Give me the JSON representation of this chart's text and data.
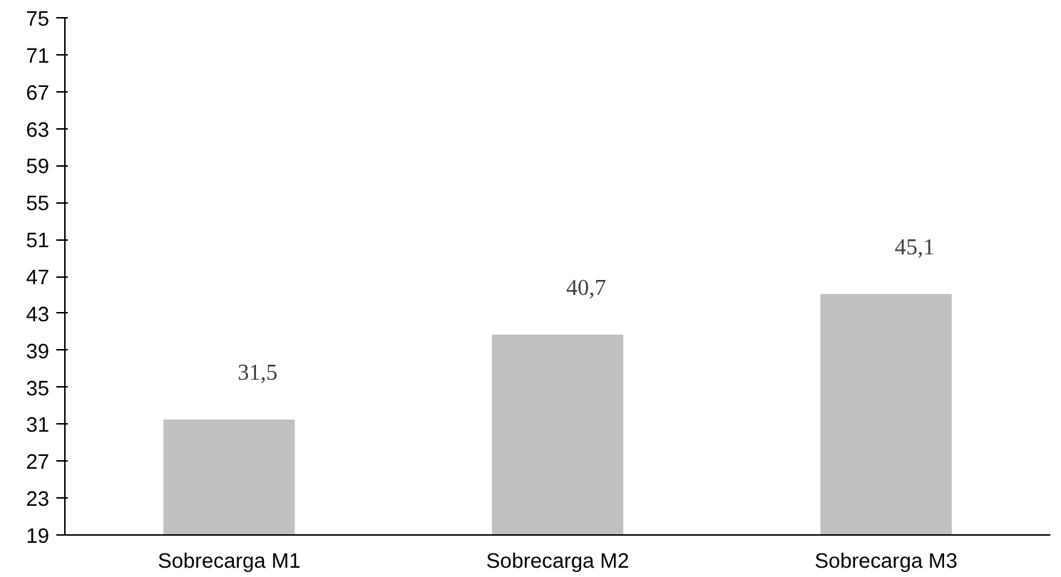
{
  "chart_data": {
    "type": "bar",
    "categories": [
      "Sobrecarga M1",
      "Sobrecarga M2",
      "Sobrecarga M3"
    ],
    "values": [
      31.5,
      40.7,
      45.1
    ],
    "value_labels": [
      "31,5",
      "40,7",
      "45,1"
    ],
    "color": "#c0c0c0",
    "ylim": [
      19,
      75
    ],
    "yticks": [
      19,
      23,
      27,
      31,
      35,
      39,
      43,
      47,
      51,
      55,
      59,
      63,
      67,
      71,
      75
    ],
    "grid": false
  }
}
